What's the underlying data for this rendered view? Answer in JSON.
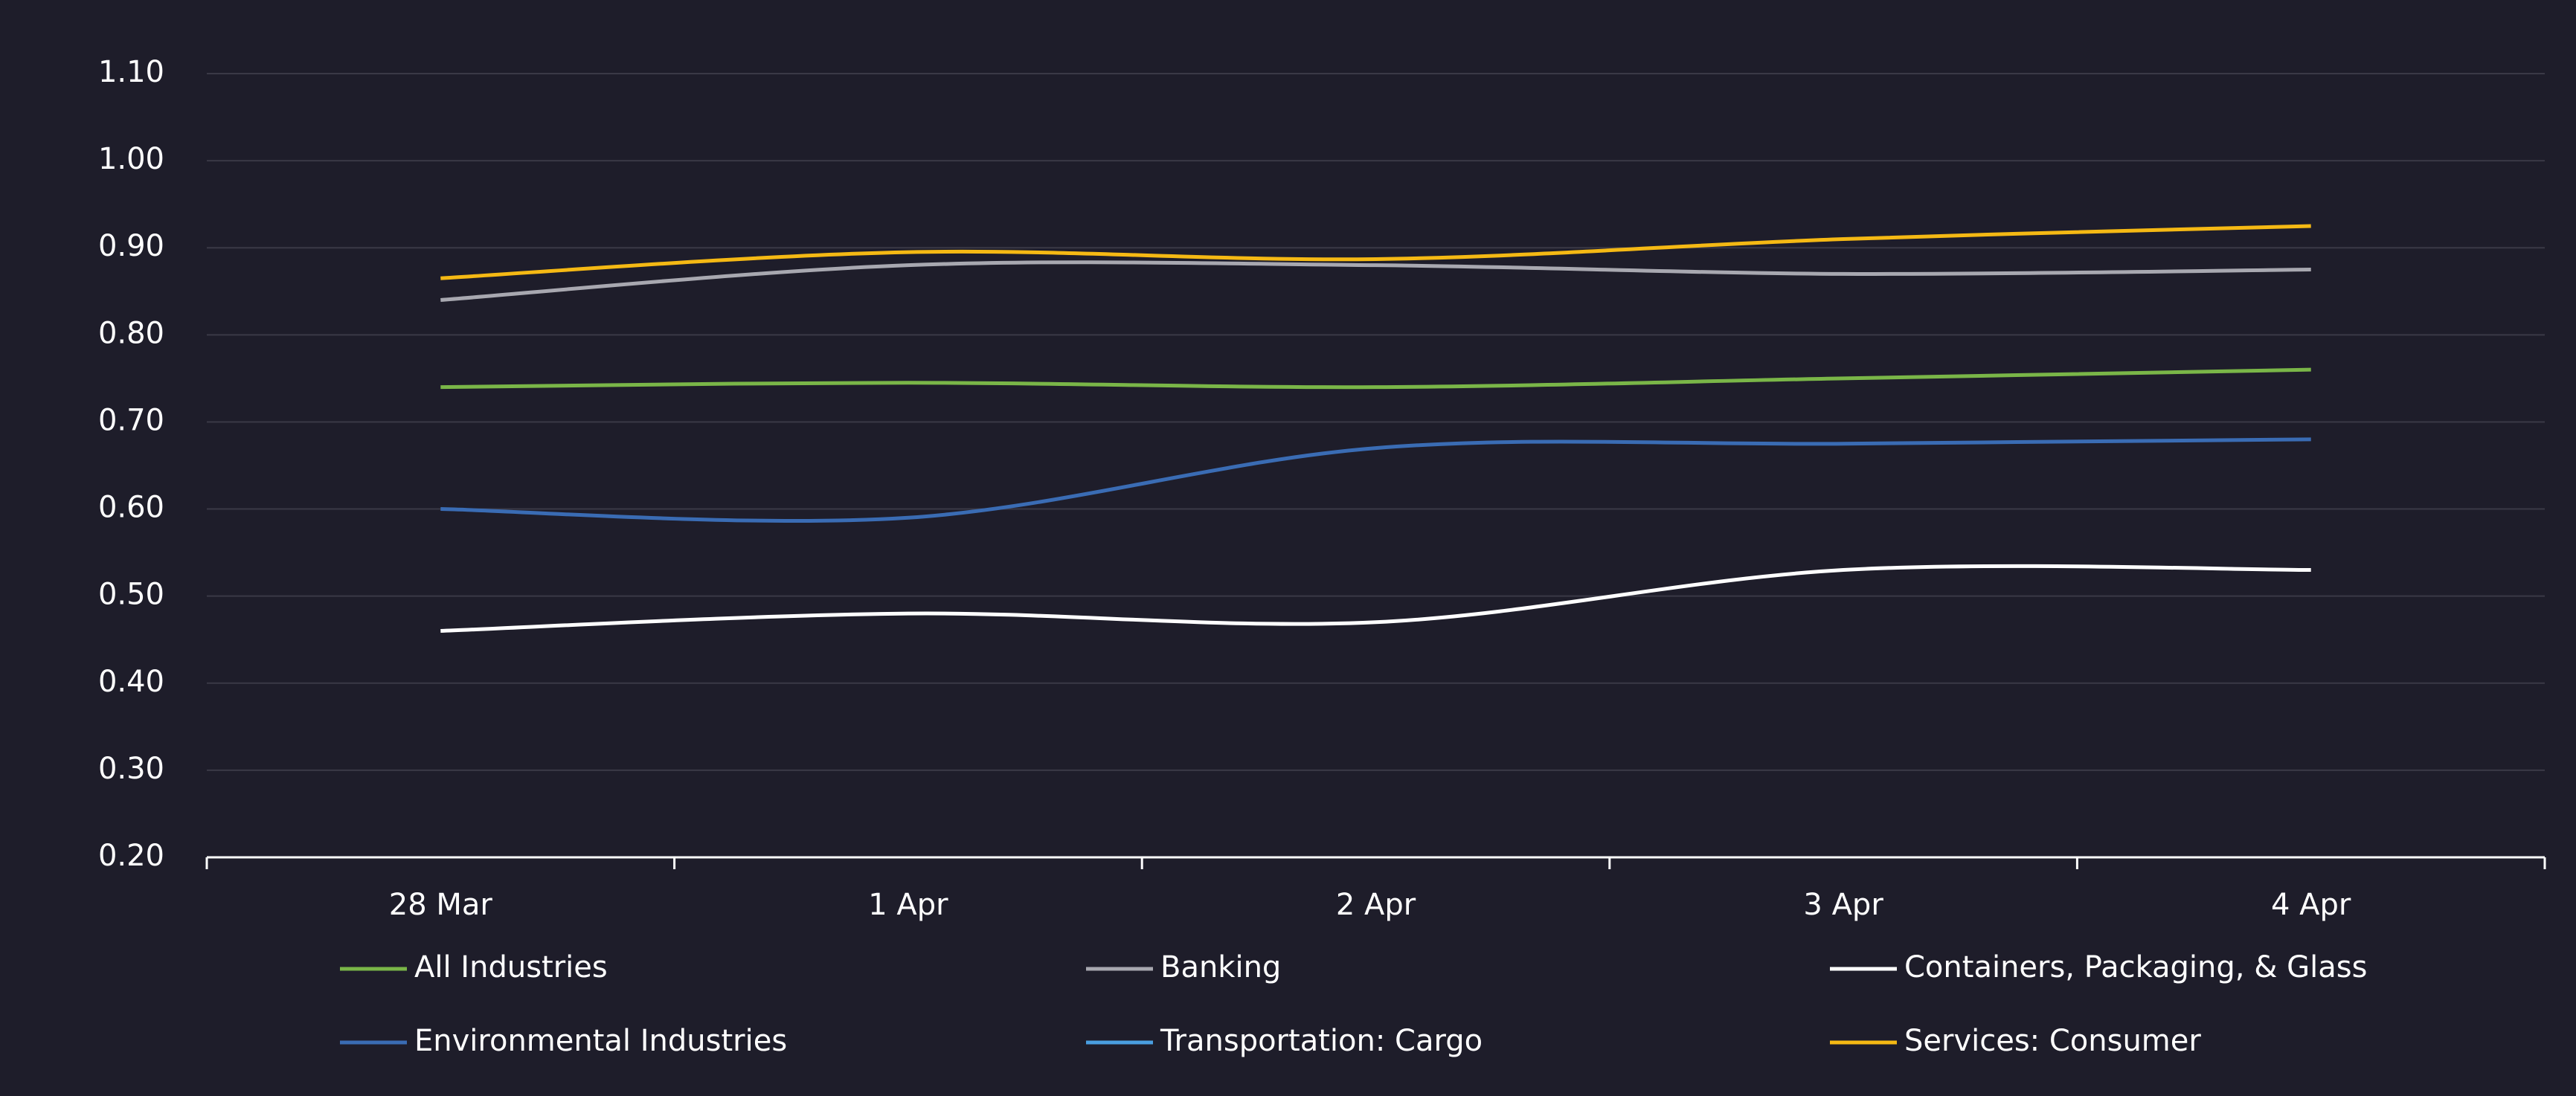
{
  "chart_data": {
    "type": "line",
    "categories": [
      "28 Mar",
      "1 Apr",
      "2 Apr",
      "3 Apr",
      "4 Apr"
    ],
    "series": [
      {
        "name": "All Industries",
        "color": "#7ab648",
        "values": [
          0.74,
          0.745,
          0.74,
          0.75,
          0.76
        ]
      },
      {
        "name": "Banking",
        "color": "#a8a8b0",
        "values": [
          0.84,
          0.88,
          0.88,
          0.87,
          0.875
        ]
      },
      {
        "name": "Containers, Packaging, & Glass",
        "color": "#ffffff",
        "values": [
          0.46,
          0.48,
          0.47,
          0.53,
          0.53
        ]
      },
      {
        "name": "Environmental Industries",
        "color": "#3a6cb4",
        "values": [
          0.6,
          0.59,
          0.67,
          0.675,
          0.68
        ]
      },
      {
        "name": "Transportation: Cargo",
        "color": "#4a9ee0",
        "values": [
          null,
          null,
          null,
          null,
          null
        ]
      },
      {
        "name": "Services: Consumer",
        "color": "#f5b914",
        "values": [
          0.865,
          0.895,
          0.887,
          0.91,
          0.925
        ]
      }
    ],
    "ylim": [
      0.2,
      1.1
    ],
    "yticks": [
      {
        "value": 0.2,
        "label": "0.20"
      },
      {
        "value": 0.3,
        "label": "0.30"
      },
      {
        "value": 0.4,
        "label": "0.40"
      },
      {
        "value": 0.5,
        "label": "0.50"
      },
      {
        "value": 0.6,
        "label": "0.60"
      },
      {
        "value": 0.7,
        "label": "0.70"
      },
      {
        "value": 0.8,
        "label": "0.80"
      },
      {
        "value": 0.9,
        "label": "0.90"
      },
      {
        "value": 1.0,
        "label": "1.00"
      },
      {
        "value": 1.1,
        "label": "1.10"
      }
    ],
    "grid": true,
    "legend": "bottom"
  }
}
